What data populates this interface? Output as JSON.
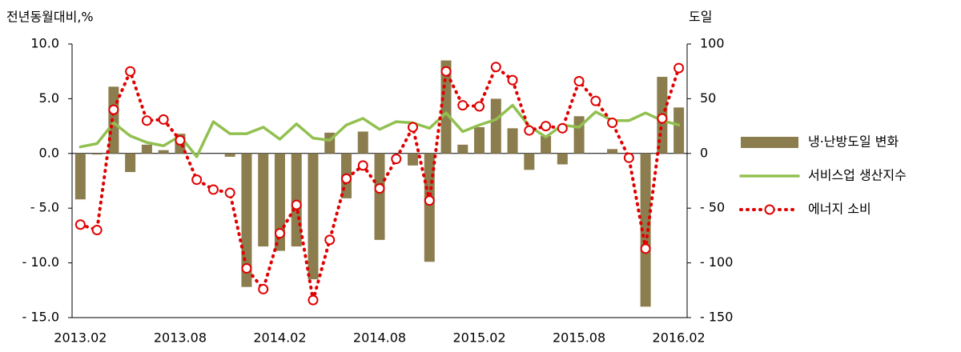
{
  "chart_data": {
    "type": "combo",
    "y_label": "전년동월대비,%",
    "y2_label": "도일",
    "categories": [
      "2013.02",
      null,
      null,
      null,
      null,
      null,
      "2013.08",
      null,
      null,
      null,
      null,
      null,
      "2014.02",
      null,
      null,
      null,
      null,
      null,
      "2014.08",
      null,
      null,
      null,
      null,
      null,
      "2015.02",
      null,
      null,
      null,
      null,
      null,
      "2015.08",
      null,
      null,
      null,
      null,
      null,
      "2016.02"
    ],
    "ylim": [
      -15,
      10
    ],
    "yticks": [
      {
        "value": -15,
        "label": "- 15.0"
      },
      {
        "value": -10,
        "label": "- 10.0"
      },
      {
        "value": -5,
        "label": "- 5.0"
      },
      {
        "value": 0,
        "label": "0.0"
      },
      {
        "value": 5,
        "label": "5.0"
      },
      {
        "value": 10,
        "label": "10.0"
      }
    ],
    "y2lim": [
      -150,
      100
    ],
    "y2ticks": [
      {
        "value": -150,
        "label": "- 150"
      },
      {
        "value": -100,
        "label": "- 100"
      },
      {
        "value": -50,
        "label": "- 50"
      },
      0,
      50,
      100
    ],
    "legend": "right",
    "series": [
      {
        "name": "냉·난방도일 변화",
        "type": "bar",
        "axis": "y2",
        "color": "#8c7d4e",
        "values": [
          -42,
          -1,
          61,
          -17,
          8,
          3,
          18,
          0,
          0,
          -3,
          -122,
          -85,
          -89,
          -85,
          -115,
          19,
          -41,
          20,
          -79,
          0,
          -11,
          -99,
          85,
          8,
          24,
          50,
          23,
          -15,
          16,
          -10,
          34,
          0,
          4,
          0,
          -140,
          70,
          42
        ]
      },
      {
        "name": "서비스업 생산지수",
        "type": "line",
        "color": "#92c050",
        "values": [
          0.6,
          0.9,
          2.8,
          1.6,
          1.0,
          0.7,
          1.6,
          -0.3,
          2.9,
          1.8,
          1.8,
          2.4,
          1.3,
          2.7,
          1.4,
          1.2,
          2.6,
          3.2,
          2.2,
          2.9,
          2.8,
          2.3,
          3.7,
          2.0,
          2.6,
          3.1,
          4.4,
          2.5,
          1.5,
          2.6,
          2.4,
          3.8,
          3.0,
          3.0,
          3.7,
          3.0,
          2.6
        ]
      },
      {
        "name": "에너지 소비",
        "type": "line",
        "line_style": "dotted",
        "marker": "circle",
        "color": "#e00000",
        "values": [
          -6.5,
          -7.0,
          4.0,
          7.5,
          3.0,
          3.1,
          1.2,
          -2.4,
          -3.3,
          -3.6,
          -10.5,
          -12.4,
          -7.3,
          -4.7,
          -13.4,
          -7.9,
          -2.3,
          -1.1,
          -3.2,
          -0.5,
          2.4,
          -4.3,
          7.5,
          4.4,
          4.3,
          7.9,
          6.7,
          2.1,
          2.5,
          2.3,
          6.6,
          4.8,
          2.8,
          -0.4,
          -8.7,
          3.2,
          7.8
        ]
      }
    ]
  }
}
